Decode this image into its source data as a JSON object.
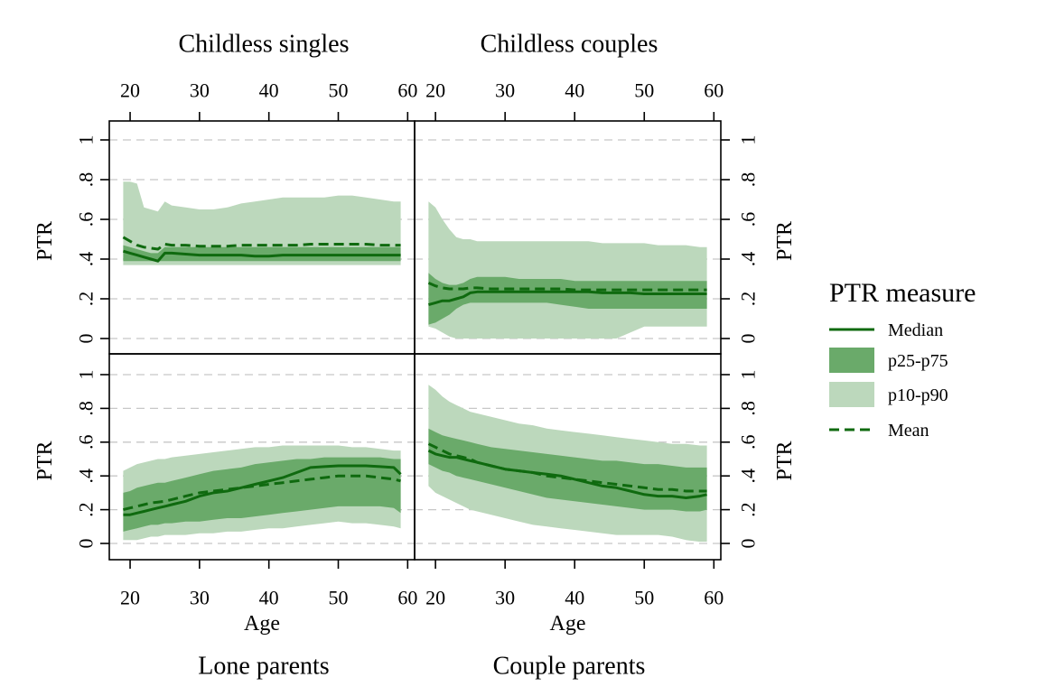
{
  "legend": {
    "title": "PTR measure",
    "items": [
      {
        "label": "Median",
        "kind": "line",
        "dash": false
      },
      {
        "label": "p25-p75",
        "kind": "band",
        "color": "#6aaa6a"
      },
      {
        "label": "p10-p90",
        "kind": "band",
        "color": "#bcd8bc"
      },
      {
        "label": "Mean",
        "kind": "line",
        "dash": true
      }
    ]
  },
  "colors": {
    "line": "#0f6a0f",
    "inner_band": "#6aaa6a",
    "outer_band": "#bcd8bc",
    "grid": "#c7c7c7"
  },
  "chart_data": [
    {
      "type": "area",
      "title": "Childless singles",
      "xlabel": "",
      "ylabel": "PTR",
      "xlim": [
        17,
        61
      ],
      "ylim": [
        -0.1,
        1.07
      ],
      "xticks": [
        20,
        30,
        40,
        50,
        60
      ],
      "yticks": [
        0,
        0.2,
        0.4,
        0.6,
        0.8,
        1
      ],
      "ytick_labels": [
        "0",
        ".2",
        ".4",
        ".6",
        ".8",
        "1"
      ],
      "grid": true,
      "x": [
        19,
        20,
        21,
        22,
        23,
        24,
        25,
        26,
        28,
        30,
        32,
        34,
        36,
        38,
        40,
        42,
        44,
        46,
        48,
        50,
        52,
        54,
        56,
        58,
        59
      ],
      "series": [
        {
          "name": "p10-p90",
          "lower": [
            0.37,
            0.37,
            0.37,
            0.37,
            0.37,
            0.37,
            0.37,
            0.37,
            0.37,
            0.37,
            0.37,
            0.37,
            0.37,
            0.37,
            0.37,
            0.37,
            0.37,
            0.37,
            0.37,
            0.37,
            0.37,
            0.37,
            0.37,
            0.37,
            0.37
          ],
          "upper": [
            0.79,
            0.79,
            0.78,
            0.66,
            0.65,
            0.64,
            0.69,
            0.67,
            0.66,
            0.65,
            0.65,
            0.66,
            0.68,
            0.69,
            0.7,
            0.71,
            0.71,
            0.71,
            0.71,
            0.72,
            0.72,
            0.71,
            0.7,
            0.69,
            0.69
          ]
        },
        {
          "name": "p25-p75",
          "lower": [
            0.39,
            0.39,
            0.39,
            0.39,
            0.39,
            0.39,
            0.39,
            0.39,
            0.39,
            0.39,
            0.39,
            0.39,
            0.39,
            0.39,
            0.39,
            0.39,
            0.39,
            0.39,
            0.39,
            0.39,
            0.39,
            0.39,
            0.39,
            0.39,
            0.39
          ],
          "upper": [
            0.47,
            0.46,
            0.45,
            0.44,
            0.43,
            0.43,
            0.46,
            0.46,
            0.46,
            0.46,
            0.46,
            0.46,
            0.46,
            0.46,
            0.46,
            0.46,
            0.46,
            0.46,
            0.46,
            0.46,
            0.46,
            0.46,
            0.46,
            0.46,
            0.46
          ]
        },
        {
          "name": "Median",
          "values": [
            0.44,
            0.43,
            0.42,
            0.41,
            0.4,
            0.39,
            0.43,
            0.43,
            0.425,
            0.42,
            0.42,
            0.42,
            0.42,
            0.415,
            0.415,
            0.42,
            0.42,
            0.42,
            0.42,
            0.42,
            0.42,
            0.42,
            0.42,
            0.42,
            0.42
          ]
        },
        {
          "name": "Mean",
          "values": [
            0.51,
            0.49,
            0.47,
            0.46,
            0.455,
            0.45,
            0.475,
            0.47,
            0.47,
            0.465,
            0.465,
            0.465,
            0.47,
            0.47,
            0.47,
            0.47,
            0.47,
            0.475,
            0.475,
            0.475,
            0.475,
            0.475,
            0.47,
            0.47,
            0.47
          ]
        }
      ]
    },
    {
      "type": "area",
      "title": "Childless couples",
      "xlabel": "",
      "ylabel": "PTR",
      "xlim": [
        17,
        61
      ],
      "ylim": [
        -0.1,
        1.07
      ],
      "xticks": [
        20,
        30,
        40,
        50,
        60
      ],
      "yticks": [
        0,
        0.2,
        0.4,
        0.6,
        0.8,
        1
      ],
      "ytick_labels": [
        "0",
        ".2",
        ".4",
        ".6",
        ".8",
        "1"
      ],
      "grid": true,
      "x": [
        19,
        20,
        21,
        22,
        23,
        24,
        25,
        26,
        28,
        30,
        32,
        34,
        36,
        38,
        40,
        42,
        44,
        46,
        48,
        50,
        52,
        54,
        56,
        58,
        59
      ],
      "series": [
        {
          "name": "p10-p90",
          "lower": [
            0.06,
            0.05,
            0.03,
            0.01,
            0.0,
            0.0,
            0.0,
            0.0,
            0.0,
            0.0,
            0.0,
            0.0,
            0.0,
            0.0,
            0.0,
            0.0,
            0.0,
            0.0,
            0.03,
            0.06,
            0.06,
            0.06,
            0.06,
            0.06,
            0.06
          ],
          "upper": [
            0.69,
            0.66,
            0.6,
            0.55,
            0.51,
            0.5,
            0.5,
            0.49,
            0.49,
            0.49,
            0.49,
            0.49,
            0.49,
            0.49,
            0.49,
            0.49,
            0.48,
            0.48,
            0.48,
            0.48,
            0.47,
            0.47,
            0.47,
            0.46,
            0.46
          ]
        },
        {
          "name": "p25-p75",
          "lower": [
            0.07,
            0.08,
            0.1,
            0.12,
            0.15,
            0.17,
            0.18,
            0.18,
            0.18,
            0.18,
            0.18,
            0.18,
            0.18,
            0.17,
            0.16,
            0.15,
            0.15,
            0.15,
            0.15,
            0.15,
            0.15,
            0.15,
            0.15,
            0.15,
            0.15
          ],
          "upper": [
            0.33,
            0.3,
            0.28,
            0.27,
            0.27,
            0.28,
            0.3,
            0.31,
            0.31,
            0.31,
            0.3,
            0.3,
            0.3,
            0.3,
            0.29,
            0.29,
            0.29,
            0.29,
            0.29,
            0.29,
            0.29,
            0.29,
            0.29,
            0.29,
            0.29
          ]
        },
        {
          "name": "Median",
          "values": [
            0.17,
            0.18,
            0.19,
            0.19,
            0.2,
            0.21,
            0.23,
            0.235,
            0.235,
            0.235,
            0.235,
            0.235,
            0.235,
            0.235,
            0.235,
            0.235,
            0.23,
            0.23,
            0.23,
            0.225,
            0.225,
            0.225,
            0.225,
            0.225,
            0.225
          ]
        },
        {
          "name": "Mean",
          "values": [
            0.28,
            0.265,
            0.255,
            0.25,
            0.25,
            0.25,
            0.255,
            0.255,
            0.25,
            0.25,
            0.25,
            0.25,
            0.25,
            0.25,
            0.245,
            0.245,
            0.245,
            0.245,
            0.245,
            0.245,
            0.245,
            0.245,
            0.245,
            0.245,
            0.245
          ]
        }
      ]
    },
    {
      "type": "area",
      "title": "Lone parents",
      "xlabel": "Age",
      "ylabel": "PTR",
      "xlim": [
        17,
        61
      ],
      "ylim": [
        -0.1,
        1.07
      ],
      "xticks": [
        20,
        30,
        40,
        50,
        60
      ],
      "yticks": [
        0,
        0.2,
        0.4,
        0.6,
        0.8,
        1
      ],
      "ytick_labels": [
        "0",
        ".2",
        ".4",
        ".6",
        ".8",
        "1"
      ],
      "grid": true,
      "x": [
        19,
        20,
        21,
        22,
        23,
        24,
        25,
        26,
        28,
        30,
        32,
        34,
        36,
        38,
        40,
        42,
        44,
        46,
        48,
        50,
        52,
        54,
        56,
        58,
        59
      ],
      "series": [
        {
          "name": "p10-p90",
          "lower": [
            0.02,
            0.02,
            0.02,
            0.03,
            0.04,
            0.04,
            0.05,
            0.05,
            0.05,
            0.06,
            0.06,
            0.07,
            0.07,
            0.08,
            0.09,
            0.09,
            0.1,
            0.11,
            0.12,
            0.13,
            0.12,
            0.12,
            0.11,
            0.1,
            0.09
          ],
          "upper": [
            0.43,
            0.45,
            0.47,
            0.48,
            0.49,
            0.5,
            0.5,
            0.51,
            0.52,
            0.53,
            0.54,
            0.55,
            0.56,
            0.57,
            0.57,
            0.58,
            0.58,
            0.58,
            0.58,
            0.58,
            0.57,
            0.57,
            0.56,
            0.55,
            0.55
          ]
        },
        {
          "name": "p25-p75",
          "lower": [
            0.07,
            0.08,
            0.09,
            0.1,
            0.11,
            0.11,
            0.12,
            0.12,
            0.13,
            0.13,
            0.14,
            0.15,
            0.15,
            0.16,
            0.17,
            0.18,
            0.19,
            0.2,
            0.21,
            0.22,
            0.22,
            0.22,
            0.22,
            0.21,
            0.18
          ],
          "upper": [
            0.3,
            0.31,
            0.33,
            0.34,
            0.35,
            0.36,
            0.36,
            0.37,
            0.39,
            0.41,
            0.43,
            0.44,
            0.45,
            0.47,
            0.48,
            0.49,
            0.5,
            0.5,
            0.51,
            0.51,
            0.51,
            0.51,
            0.51,
            0.5,
            0.5
          ]
        },
        {
          "name": "Median",
          "values": [
            0.17,
            0.17,
            0.18,
            0.19,
            0.2,
            0.21,
            0.22,
            0.23,
            0.25,
            0.28,
            0.3,
            0.31,
            0.33,
            0.35,
            0.37,
            0.39,
            0.42,
            0.45,
            0.455,
            0.46,
            0.46,
            0.46,
            0.455,
            0.45,
            0.41
          ]
        },
        {
          "name": "Mean",
          "values": [
            0.2,
            0.21,
            0.22,
            0.23,
            0.24,
            0.245,
            0.25,
            0.26,
            0.28,
            0.3,
            0.31,
            0.32,
            0.33,
            0.34,
            0.35,
            0.36,
            0.37,
            0.38,
            0.39,
            0.4,
            0.4,
            0.4,
            0.39,
            0.38,
            0.37
          ]
        }
      ]
    },
    {
      "type": "area",
      "title": "Couple parents",
      "xlabel": "Age",
      "ylabel": "PTR",
      "xlim": [
        17,
        61
      ],
      "ylim": [
        -0.1,
        1.07
      ],
      "xticks": [
        20,
        30,
        40,
        50,
        60
      ],
      "yticks": [
        0,
        0.2,
        0.4,
        0.6,
        0.8,
        1
      ],
      "ytick_labels": [
        "0",
        ".2",
        ".4",
        ".6",
        ".8",
        "1"
      ],
      "grid": true,
      "x": [
        19,
        20,
        21,
        22,
        23,
        24,
        25,
        26,
        28,
        30,
        32,
        34,
        36,
        38,
        40,
        42,
        44,
        46,
        48,
        50,
        52,
        54,
        56,
        58,
        59
      ],
      "series": [
        {
          "name": "p10-p90",
          "lower": [
            0.34,
            0.3,
            0.28,
            0.26,
            0.24,
            0.22,
            0.2,
            0.19,
            0.17,
            0.15,
            0.13,
            0.11,
            0.1,
            0.09,
            0.08,
            0.07,
            0.06,
            0.05,
            0.05,
            0.05,
            0.05,
            0.04,
            0.02,
            0.01,
            0.01
          ],
          "upper": [
            0.94,
            0.91,
            0.87,
            0.84,
            0.82,
            0.8,
            0.78,
            0.77,
            0.75,
            0.73,
            0.71,
            0.7,
            0.68,
            0.67,
            0.66,
            0.65,
            0.64,
            0.63,
            0.62,
            0.61,
            0.6,
            0.59,
            0.59,
            0.58,
            0.58
          ]
        },
        {
          "name": "p25-p75",
          "lower": [
            0.47,
            0.45,
            0.43,
            0.42,
            0.4,
            0.39,
            0.38,
            0.37,
            0.35,
            0.33,
            0.31,
            0.29,
            0.27,
            0.26,
            0.25,
            0.24,
            0.23,
            0.22,
            0.21,
            0.2,
            0.2,
            0.2,
            0.19,
            0.19,
            0.2
          ],
          "upper": [
            0.68,
            0.66,
            0.64,
            0.63,
            0.62,
            0.61,
            0.6,
            0.59,
            0.57,
            0.56,
            0.55,
            0.54,
            0.53,
            0.52,
            0.51,
            0.5,
            0.49,
            0.49,
            0.48,
            0.47,
            0.47,
            0.46,
            0.45,
            0.45,
            0.45
          ]
        },
        {
          "name": "Median",
          "values": [
            0.55,
            0.53,
            0.52,
            0.51,
            0.51,
            0.5,
            0.49,
            0.48,
            0.46,
            0.44,
            0.43,
            0.42,
            0.41,
            0.4,
            0.38,
            0.36,
            0.34,
            0.33,
            0.31,
            0.29,
            0.28,
            0.28,
            0.27,
            0.28,
            0.29
          ]
        },
        {
          "name": "Mean",
          "values": [
            0.59,
            0.57,
            0.55,
            0.53,
            0.52,
            0.51,
            0.5,
            0.48,
            0.46,
            0.44,
            0.43,
            0.42,
            0.4,
            0.39,
            0.38,
            0.37,
            0.36,
            0.35,
            0.34,
            0.33,
            0.32,
            0.32,
            0.31,
            0.31,
            0.31
          ]
        }
      ]
    }
  ]
}
